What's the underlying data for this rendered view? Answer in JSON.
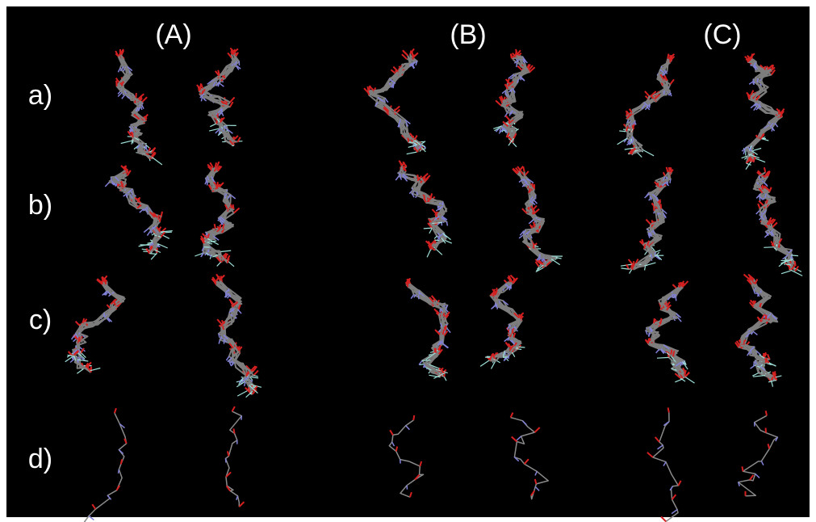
{
  "columns": [
    "(A)",
    "(B)",
    "(C)"
  ],
  "rows": [
    "a)",
    "b)",
    "c)",
    "d)"
  ]
}
